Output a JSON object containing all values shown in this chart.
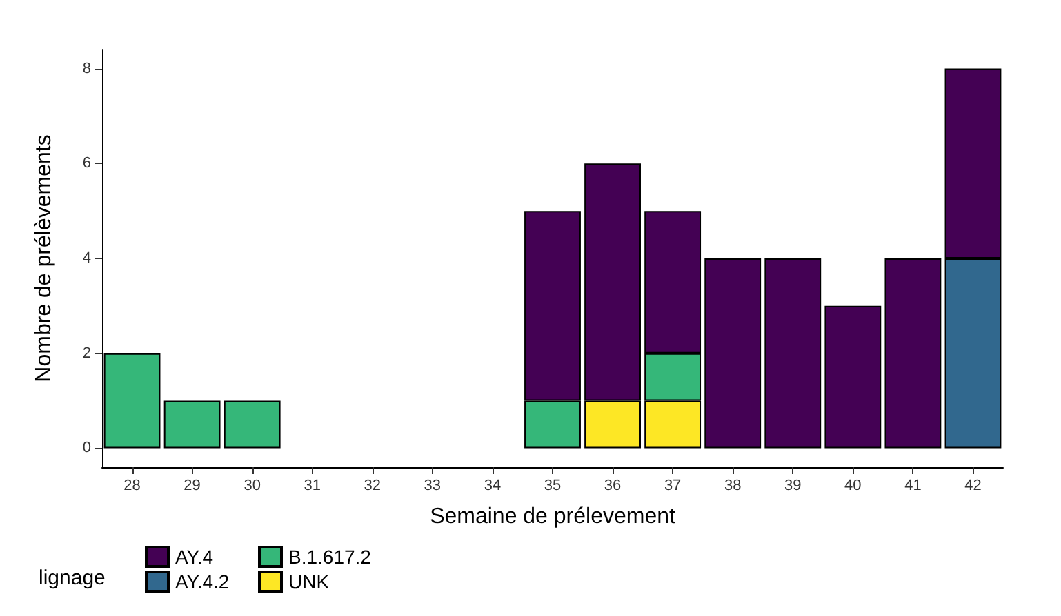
{
  "chart_data": {
    "type": "bar",
    "stacked": true,
    "xlabel": "Semaine de prélevement",
    "ylabel": "Nombre de prélèvements",
    "legend_title": "lignage",
    "legend": "bottom left",
    "grid": false,
    "categories": [
      "28",
      "29",
      "30",
      "31",
      "32",
      "33",
      "34",
      "35",
      "36",
      "37",
      "38",
      "39",
      "40",
      "41",
      "42"
    ],
    "series": [
      {
        "name": "UNK",
        "color": "#fde725",
        "values": [
          null,
          null,
          null,
          null,
          null,
          null,
          null,
          null,
          1,
          1,
          null,
          null,
          null,
          null,
          null
        ]
      },
      {
        "name": "B.1.617.2",
        "color": "#35b779",
        "values": [
          2,
          1,
          1,
          null,
          null,
          null,
          null,
          1,
          null,
          1,
          null,
          null,
          null,
          null,
          null
        ]
      },
      {
        "name": "AY.4.2",
        "color": "#31688e",
        "values": [
          null,
          null,
          null,
          null,
          null,
          null,
          null,
          null,
          null,
          null,
          null,
          null,
          null,
          null,
          4
        ]
      },
      {
        "name": "AY.4",
        "color": "#440154",
        "values": [
          null,
          null,
          null,
          null,
          null,
          null,
          null,
          4,
          5,
          3,
          4,
          4,
          3,
          4,
          4
        ]
      }
    ],
    "ylim": [
      -0.4,
      8.4
    ],
    "yticks": [
      0,
      2,
      4,
      6,
      8
    ]
  }
}
